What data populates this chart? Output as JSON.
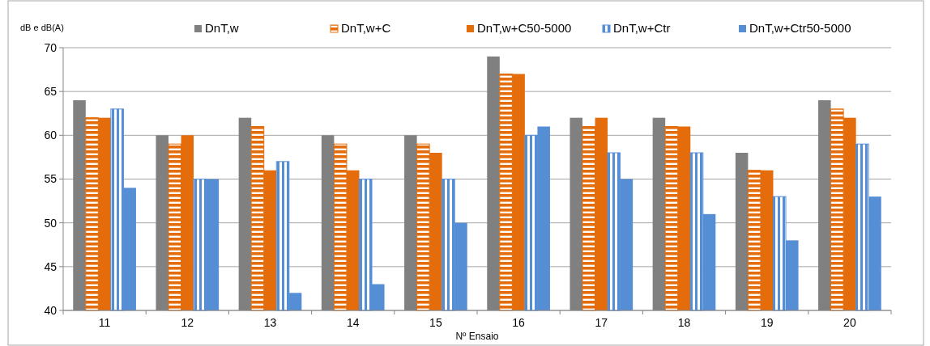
{
  "chart_data": {
    "type": "bar",
    "ylabel": "dB e dB(A)",
    "xlabel": "Nº Ensaio",
    "categories": [
      "11",
      "12",
      "13",
      "14",
      "15",
      "16",
      "17",
      "18",
      "19",
      "20"
    ],
    "series": [
      {
        "name": "DnT,w",
        "color": "#808080",
        "values": [
          64,
          60,
          62,
          60,
          60,
          69,
          62,
          62,
          58,
          64
        ]
      },
      {
        "name": "DnT,w+C",
        "color": "#e46c0a",
        "values": [
          62,
          59,
          61,
          59,
          59,
          67,
          61,
          61,
          56,
          63
        ]
      },
      {
        "name": "DnT,w+C50-5000",
        "color": "#e46c0a",
        "values": [
          62,
          60,
          56,
          56,
          58,
          67,
          62,
          61,
          56,
          62
        ]
      },
      {
        "name": "DnT,w+Ctr",
        "color": "#558ed5",
        "values": [
          63,
          55,
          57,
          55,
          55,
          60,
          58,
          58,
          53,
          59
        ]
      },
      {
        "name": "DnT,w+Ctr50-5000",
        "color": "#558ed5",
        "values": [
          54,
          55,
          42,
          43,
          50,
          61,
          55,
          51,
          48,
          53
        ]
      }
    ],
    "ylim": [
      40,
      70
    ],
    "yticks": [
      40,
      45,
      50,
      55,
      60,
      65,
      70
    ],
    "grid": "y",
    "legend": "top"
  }
}
